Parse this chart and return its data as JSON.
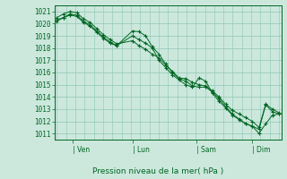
{
  "title": "Pression niveau de la mer( hPa )",
  "bg_color": "#cce8dd",
  "grid_color": "#99ccbb",
  "line_color": "#006622",
  "ylim": [
    1010.5,
    1021.5
  ],
  "yticks": [
    1011,
    1012,
    1013,
    1014,
    1015,
    1016,
    1017,
    1018,
    1019,
    1020,
    1021
  ],
  "xtick_labels": [
    "| Ven",
    "| Lun",
    "| Sam",
    "| Dim"
  ],
  "xtick_positions": [
    0.07,
    0.34,
    0.63,
    0.88
  ],
  "n_vgrid": 25,
  "series": [
    {
      "x": [
        0.0,
        0.03,
        0.06,
        0.09,
        0.12,
        0.15,
        0.18,
        0.21,
        0.24,
        0.27,
        0.34,
        0.37,
        0.4,
        0.43,
        0.46,
        0.49,
        0.52,
        0.55,
        0.58,
        0.61,
        0.64,
        0.67,
        0.7,
        0.73,
        0.76,
        0.79,
        0.82,
        0.85,
        0.88,
        0.91,
        0.94,
        0.97,
        1.0
      ],
      "y": [
        1020.3,
        1020.5,
        1020.8,
        1020.7,
        1020.2,
        1019.9,
        1019.4,
        1018.9,
        1018.5,
        1018.2,
        1019.4,
        1019.35,
        1019.0,
        1018.1,
        1017.5,
        1016.7,
        1016.0,
        1015.5,
        1015.3,
        1014.9,
        1014.8,
        1014.8,
        1014.4,
        1013.85,
        1013.2,
        1012.6,
        1012.2,
        1011.8,
        1011.6,
        1011.0,
        1011.8,
        1012.5,
        1012.6
      ]
    },
    {
      "x": [
        0.0,
        0.03,
        0.06,
        0.09,
        0.12,
        0.15,
        0.18,
        0.21,
        0.24,
        0.27,
        0.34,
        0.37,
        0.4,
        0.43,
        0.46,
        0.49,
        0.52,
        0.55,
        0.58,
        0.61,
        0.64,
        0.67,
        0.7,
        0.73,
        0.76,
        0.79,
        0.82,
        0.85,
        0.88,
        0.91,
        0.94,
        0.97,
        1.0
      ],
      "y": [
        1020.5,
        1020.8,
        1021.0,
        1020.9,
        1020.4,
        1020.1,
        1019.6,
        1019.1,
        1018.7,
        1018.35,
        1018.6,
        1018.2,
        1017.9,
        1017.5,
        1017.2,
        1016.6,
        1016.1,
        1015.55,
        1015.5,
        1015.2,
        1015.0,
        1014.9,
        1014.5,
        1014.0,
        1013.4,
        1012.9,
        1012.6,
        1012.3,
        1012.0,
        1011.5,
        1013.4,
        1013.0,
        1012.7
      ]
    },
    {
      "x": [
        0.0,
        0.03,
        0.06,
        0.09,
        0.12,
        0.15,
        0.18,
        0.21,
        0.24,
        0.27,
        0.34,
        0.37,
        0.4,
        0.43,
        0.46,
        0.49,
        0.52,
        0.55,
        0.58,
        0.61,
        0.64,
        0.67,
        0.7,
        0.73,
        0.76,
        0.79,
        0.82,
        0.85,
        0.88,
        0.91,
        0.94,
        0.97,
        1.0
      ],
      "y": [
        1020.2,
        1020.5,
        1020.7,
        1020.6,
        1020.1,
        1019.8,
        1019.3,
        1018.8,
        1018.4,
        1018.2,
        1019.0,
        1018.7,
        1018.4,
        1018.0,
        1017.0,
        1016.4,
        1015.8,
        1015.4,
        1015.0,
        1014.8,
        1015.55,
        1015.3,
        1014.3,
        1013.65,
        1013.1,
        1012.5,
        1012.15,
        1011.8,
        1011.6,
        1011.35,
        1013.35,
        1012.8,
        1012.6
      ]
    }
  ]
}
